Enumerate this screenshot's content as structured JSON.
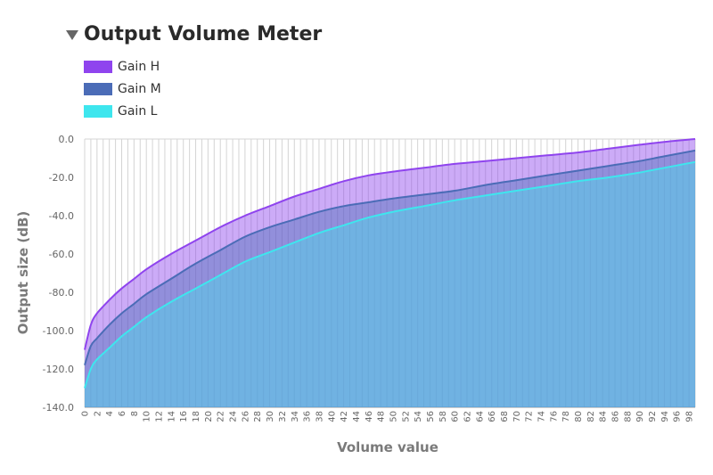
{
  "chart_data": {
    "type": "area",
    "title": "Output Volume Meter",
    "xlabel": "Volume value",
    "ylabel": "Output size (dB)",
    "xlim": [
      0,
      99
    ],
    "ylim": [
      -140,
      0
    ],
    "y_ticks": [
      "0.0",
      "-20.0",
      "-40.0",
      "-60.0",
      "-80.0",
      "-100.0",
      "-120.0",
      "-140.0"
    ],
    "x_ticks": [
      "0",
      "2",
      "4",
      "6",
      "8",
      "10",
      "12",
      "14",
      "16",
      "18",
      "20",
      "22",
      "24",
      "26",
      "28",
      "30",
      "32",
      "34",
      "36",
      "38",
      "40",
      "42",
      "44",
      "46",
      "48",
      "50",
      "52",
      "54",
      "56",
      "58",
      "60",
      "62",
      "64",
      "66",
      "68",
      "70",
      "72",
      "74",
      "76",
      "78",
      "80",
      "82",
      "84",
      "86",
      "88",
      "90",
      "92",
      "94",
      "96",
      "98"
    ],
    "grid": "vertical",
    "legend_position": "top-left",
    "x": [
      0,
      1,
      2,
      4,
      6,
      8,
      10,
      14,
      18,
      22,
      26,
      30,
      34,
      38,
      42,
      46,
      50,
      55,
      60,
      65,
      70,
      75,
      80,
      85,
      90,
      94,
      99
    ],
    "series": [
      {
        "name": "Gain H",
        "color": "#8f44ee",
        "values": [
          -110,
          -97,
          -91,
          -84,
          -78,
          -73,
          -68,
          -60,
          -53,
          -46,
          -40,
          -35,
          -30,
          -26,
          -22,
          -19,
          -17,
          -15,
          -13,
          -11.5,
          -10,
          -8.5,
          -7,
          -5,
          -3,
          -1.5,
          0
        ]
      },
      {
        "name": "Gain M",
        "color": "#4b6cb7",
        "values": [
          -118,
          -108,
          -104,
          -97,
          -91,
          -86,
          -81,
          -73,
          -65,
          -58,
          -51,
          -46,
          -42,
          -38,
          -35,
          -33,
          -31,
          -29,
          -27,
          -24,
          -21.5,
          -19,
          -16.5,
          -14,
          -11.5,
          -9,
          -6
        ]
      },
      {
        "name": "Gain L",
        "color": "#3ee6ee",
        "values": [
          -130,
          -120,
          -115,
          -109,
          -103,
          -98,
          -93,
          -85,
          -78,
          -71,
          -64,
          -59,
          -54,
          -49,
          -45,
          -41,
          -38,
          -35,
          -32,
          -29.5,
          -27,
          -24.5,
          -22,
          -20,
          -17.5,
          -15,
          -12
        ]
      }
    ]
  }
}
